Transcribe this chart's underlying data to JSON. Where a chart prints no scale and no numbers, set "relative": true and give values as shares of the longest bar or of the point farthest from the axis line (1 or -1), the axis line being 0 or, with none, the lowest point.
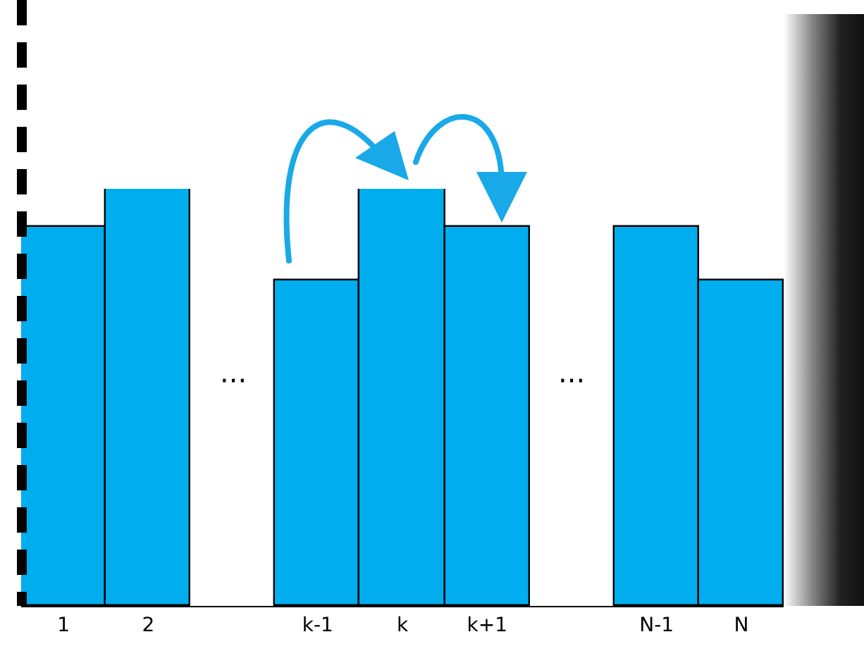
{
  "chart_data": {
    "type": "bar",
    "relative": true,
    "categories": [
      "1",
      "2",
      null,
      "k-1",
      "k",
      "k+1",
      null,
      "N-1",
      "N"
    ],
    "values": [
      0.91,
      1,
      null,
      0.78,
      1,
      0.91,
      null,
      0.91,
      0.78
    ],
    "color": "#00aeef",
    "annotations": [
      "···",
      "···"
    ]
  }
}
